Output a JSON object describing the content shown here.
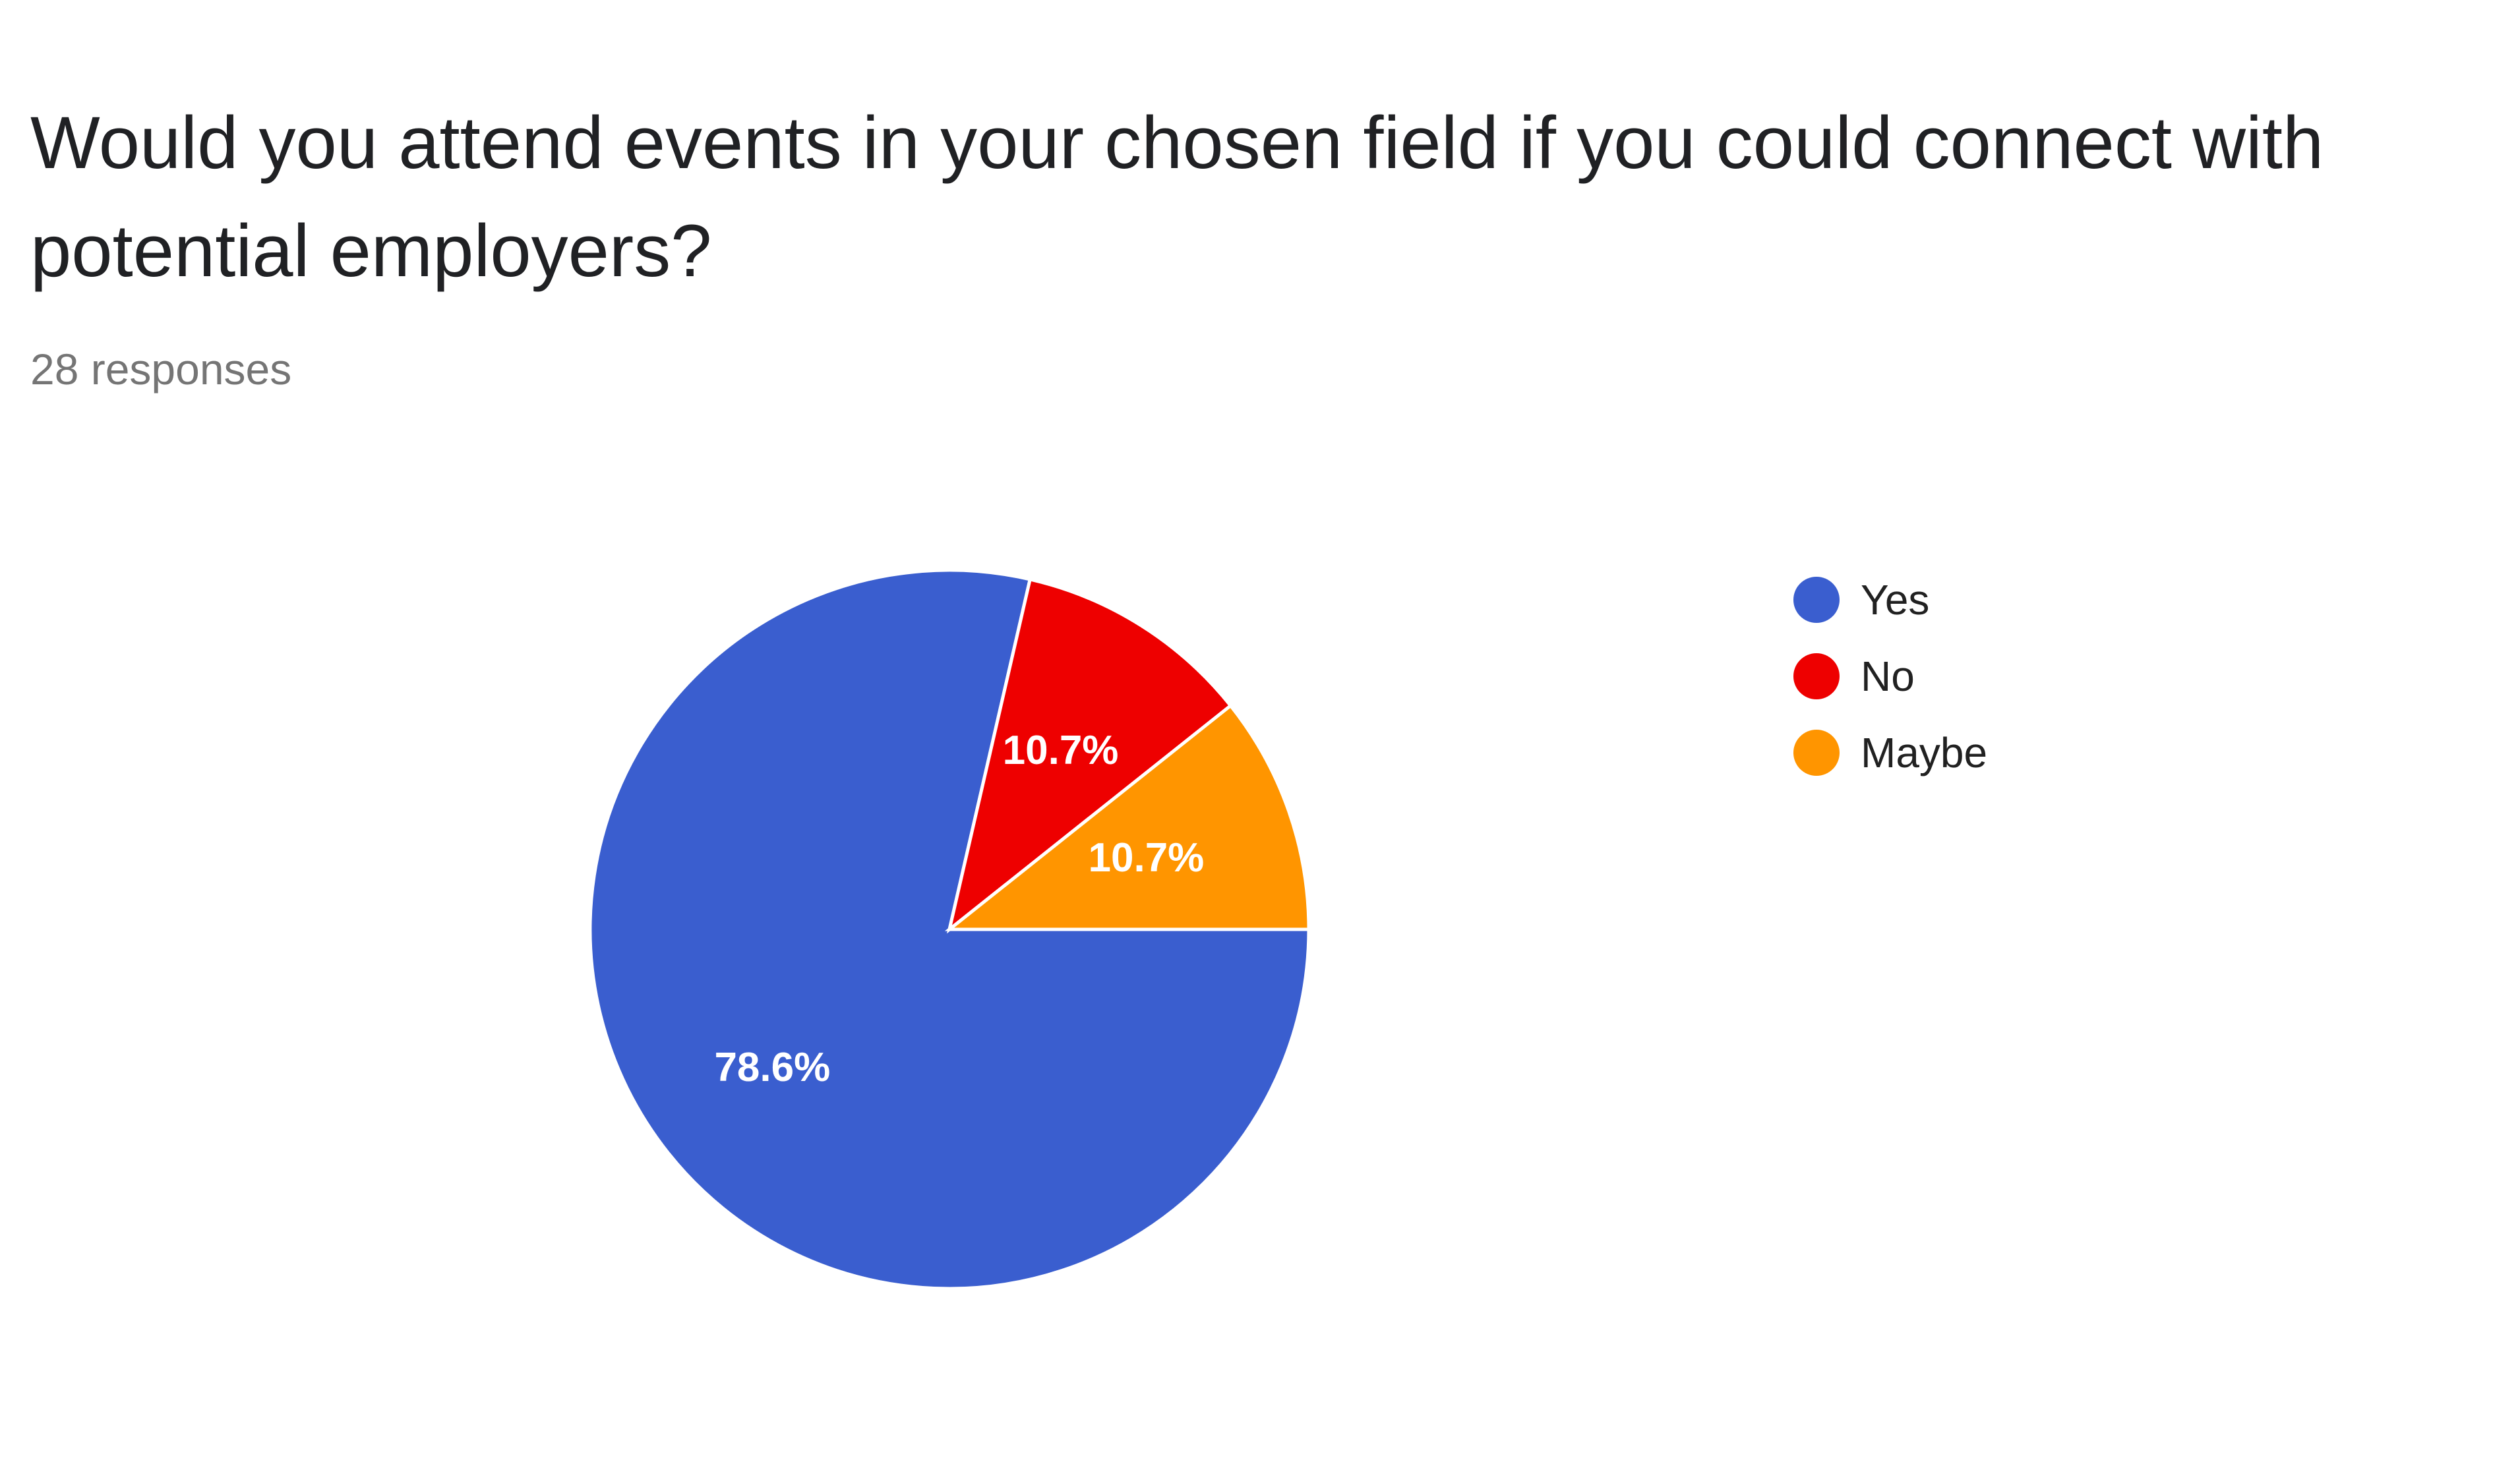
{
  "header": {
    "title": "Would you attend events in your chosen field if you could connect with potential employers?",
    "responses": "28 responses"
  },
  "chart_data": {
    "type": "pie",
    "title": "Would you attend events in your chosen field if you could connect with potential employers?",
    "total_responses": 28,
    "slices": [
      {
        "name": "Yes",
        "value": 78.6,
        "label": "78.6%",
        "color": "#3a5ecf"
      },
      {
        "name": "No",
        "value": 10.7,
        "label": "10.7%",
        "color": "#ee0000"
      },
      {
        "name": "Maybe",
        "value": 10.7,
        "label": "10.7%",
        "color": "#ff9500"
      }
    ],
    "legend_position": "right"
  },
  "legend": {
    "items": [
      {
        "label": "Yes",
        "color": "#3a5ecf"
      },
      {
        "label": "No",
        "color": "#ee0000"
      },
      {
        "label": "Maybe",
        "color": "#ff9500"
      }
    ]
  }
}
